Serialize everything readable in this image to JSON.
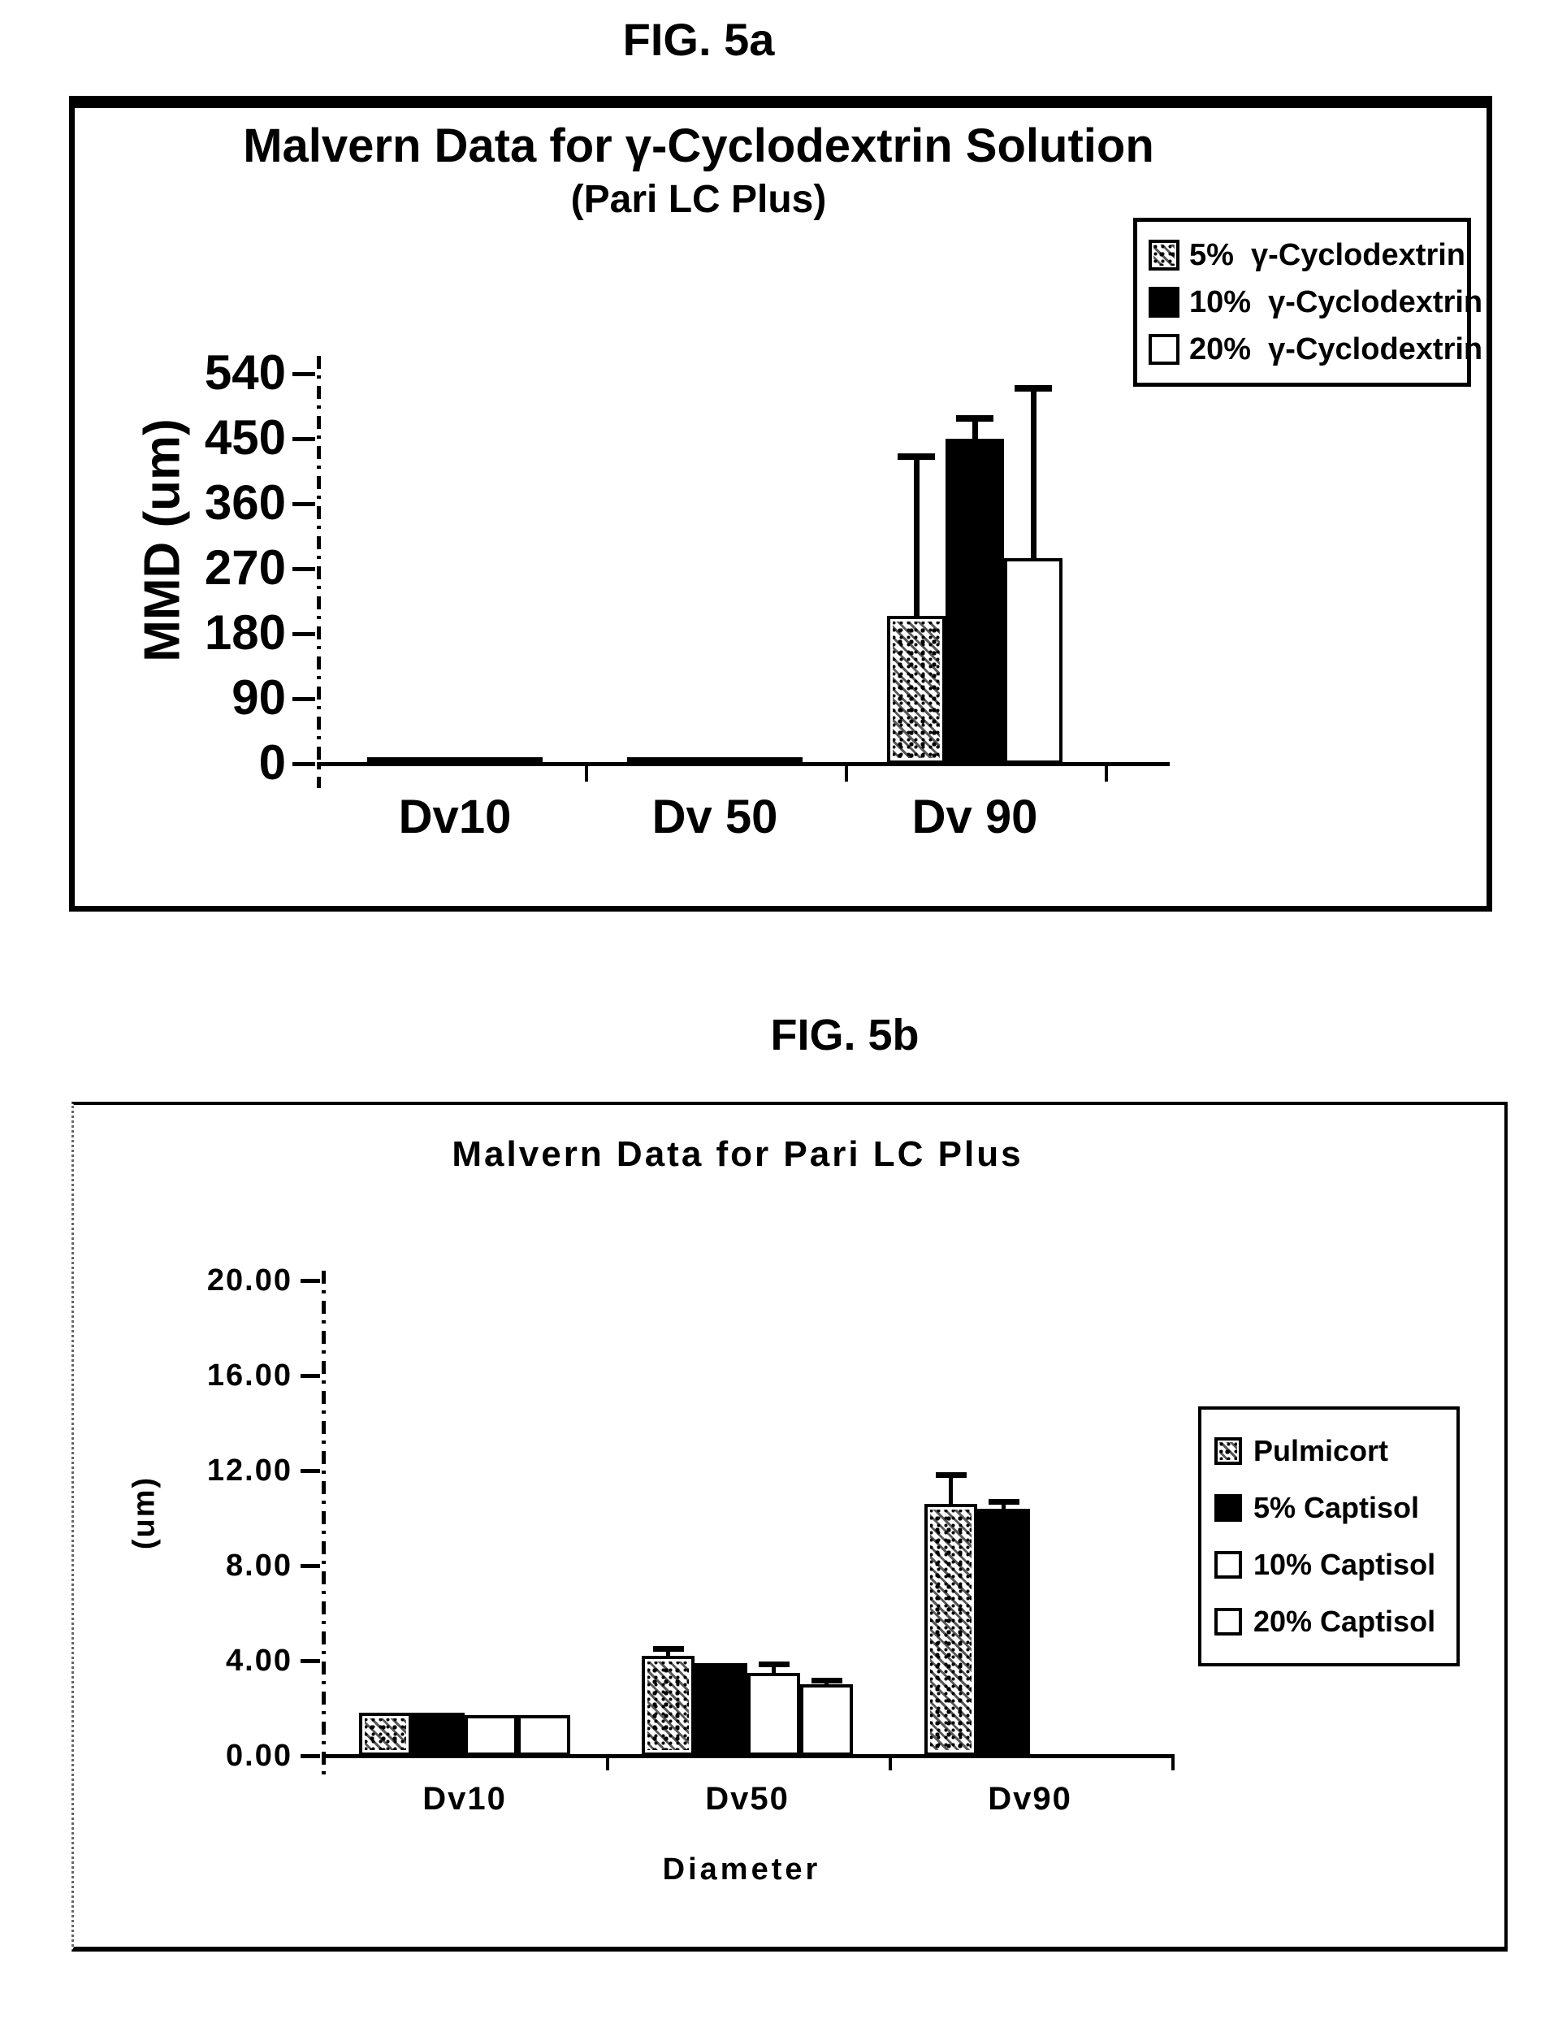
{
  "colors": {
    "ink": "#000000",
    "paper": "#ffffff"
  },
  "chart_data": [
    {
      "type": "bar",
      "figure_label": "FIG. 5a",
      "title": "Malvern Data for γ-Cyclodextrin Solution",
      "subtitle": "(Pari LC Plus)",
      "ylabel": "MMD (um)",
      "xlabel": "",
      "ylim": [
        0,
        540
      ],
      "yticks": [
        540,
        450,
        360,
        270,
        180,
        90,
        0
      ],
      "ytick_labels": [
        "540",
        "450",
        "360",
        "270",
        "180",
        "90",
        "0"
      ],
      "categories": [
        "Dv10",
        "Dv 50",
        "Dv 90"
      ],
      "grid": false,
      "legend_position": "top-right",
      "error_bars": "plus-direction-only",
      "series": [
        {
          "name": "5%  γ-Cyclodextrin",
          "pattern": "speckled",
          "values": [
            2.5,
            5,
            205
          ],
          "errors_plus": [
            0,
            0,
            220
          ]
        },
        {
          "name": "10%  γ-Cyclodextrin",
          "pattern": "solid-black",
          "values": [
            3,
            8,
            450
          ],
          "errors_plus": [
            0,
            0,
            28
          ]
        },
        {
          "name": "20%  γ-Cyclodextrin",
          "pattern": "white",
          "values": [
            2.5,
            5,
            285
          ],
          "errors_plus": [
            0,
            0,
            235
          ]
        }
      ]
    },
    {
      "type": "bar",
      "figure_label": "FIG. 5b",
      "title": "Malvern Data for Pari LC Plus",
      "subtitle": "",
      "ylabel": "(um)",
      "xlabel": "Diameter",
      "ylim": [
        0,
        20
      ],
      "yticks": [
        20,
        16,
        12,
        8,
        4,
        0
      ],
      "ytick_labels": [
        "20.00",
        "16.00",
        "12.00",
        "8.00",
        "4.00",
        "0.00"
      ],
      "categories": [
        "Dv10",
        "Dv50",
        "Dv90"
      ],
      "grid": false,
      "legend_position": "right",
      "error_bars": "plus-direction-only",
      "series": [
        {
          "name": "Pulmicort",
          "pattern": "speckled",
          "values": [
            1.8,
            4.2,
            10.6
          ],
          "errors_plus": [
            0,
            0.3,
            1.2
          ]
        },
        {
          "name": "5% Captisol",
          "pattern": "solid-black",
          "values": [
            1.8,
            3.9,
            10.4
          ],
          "errors_plus": [
            0,
            0,
            0.3
          ]
        },
        {
          "name": "10% Captisol",
          "pattern": "white",
          "values": [
            1.7,
            3.5,
            0
          ],
          "errors_plus": [
            0,
            0.35,
            0
          ]
        },
        {
          "name": "20% Captisol",
          "pattern": "white",
          "values": [
            1.7,
            3.0,
            0
          ],
          "errors_plus": [
            0,
            0.15,
            0
          ]
        }
      ]
    }
  ]
}
